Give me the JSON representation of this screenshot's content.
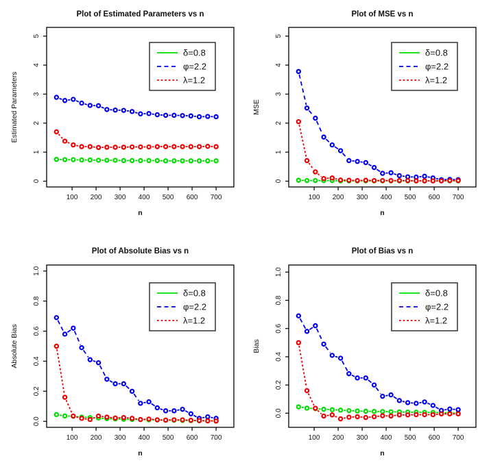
{
  "figure": {
    "background": "#ffffff"
  },
  "colors": {
    "green": "#00DE00",
    "blue": "#0000EE",
    "red": "#EE0000",
    "box": "#000000",
    "text": "#111111",
    "legend_border": "#333333"
  },
  "legend": {
    "entries": [
      {
        "label": "δ=0.8",
        "color_key": "green",
        "line_style": "solid"
      },
      {
        "label": "φ=2.2",
        "color_key": "blue",
        "line_style": "dashed"
      },
      {
        "label": "λ=1.2",
        "color_key": "red",
        "line_style": "dotted"
      }
    ],
    "position": "top-right"
  },
  "chart_data": [
    {
      "id": "estimated-parameters",
      "type": "line",
      "title": "Plot of Estimated Parameters vs n",
      "xlabel": "n",
      "ylabel": "Estimated Parameters",
      "x": [
        35,
        70,
        105,
        140,
        175,
        210,
        245,
        280,
        315,
        350,
        385,
        420,
        455,
        490,
        525,
        560,
        595,
        630,
        665,
        700
      ],
      "xlim": [
        -6,
        774
      ],
      "ylim": [
        -0.2,
        5.3
      ],
      "xticks": [
        100,
        200,
        300,
        400,
        500,
        600,
        700
      ],
      "xtick_labels": [
        "100",
        "200",
        "300",
        "400",
        "500",
        "600",
        "700"
      ],
      "yticks": [
        0,
        1,
        2,
        3,
        4,
        5
      ],
      "ytick_labels": [
        "0",
        "1",
        "2",
        "3",
        "4",
        "5"
      ],
      "grid": false,
      "legend_position": "top-right",
      "series": [
        {
          "name": "δ=0.8",
          "color_key": "green",
          "line_style": "solid",
          "values": [
            0.75,
            0.74,
            0.74,
            0.73,
            0.73,
            0.72,
            0.72,
            0.72,
            0.71,
            0.71,
            0.71,
            0.71,
            0.71,
            0.7,
            0.7,
            0.7,
            0.7,
            0.7,
            0.7,
            0.7
          ]
        },
        {
          "name": "φ=2.2",
          "color_key": "blue",
          "line_style": "dashed",
          "values": [
            2.89,
            2.78,
            2.82,
            2.69,
            2.61,
            2.6,
            2.47,
            2.45,
            2.44,
            2.4,
            2.32,
            2.33,
            2.29,
            2.27,
            2.27,
            2.26,
            2.25,
            2.22,
            2.23,
            2.22
          ]
        },
        {
          "name": "λ=1.2",
          "color_key": "red",
          "line_style": "dotted",
          "values": [
            1.7,
            1.38,
            1.25,
            1.19,
            1.19,
            1.16,
            1.17,
            1.17,
            1.17,
            1.18,
            1.18,
            1.18,
            1.19,
            1.19,
            1.19,
            1.19,
            1.19,
            1.19,
            1.2,
            1.19
          ]
        }
      ]
    },
    {
      "id": "mse",
      "type": "line",
      "title": "Plot of MSE vs n",
      "xlabel": "n",
      "ylabel": "MSE",
      "x": [
        35,
        70,
        105,
        140,
        175,
        210,
        245,
        280,
        315,
        350,
        385,
        420,
        455,
        490,
        525,
        560,
        595,
        630,
        665,
        700
      ],
      "xlim": [
        -6,
        774
      ],
      "ylim": [
        -0.2,
        5.3
      ],
      "xticks": [
        100,
        200,
        300,
        400,
        500,
        600,
        700
      ],
      "xtick_labels": [
        "100",
        "200",
        "300",
        "400",
        "500",
        "600",
        "700"
      ],
      "yticks": [
        0,
        1,
        2,
        3,
        4,
        5
      ],
      "ytick_labels": [
        "0",
        "1",
        "2",
        "3",
        "4",
        "5"
      ],
      "grid": false,
      "legend_position": "top-right",
      "series": [
        {
          "name": "δ=0.8",
          "color_key": "green",
          "line_style": "solid",
          "values": [
            0.03,
            0.02,
            0.02,
            0.02,
            0.02,
            0.01,
            0.01,
            0.01,
            0.01,
            0.01,
            0.01,
            0.01,
            0.01,
            0.01,
            0.01,
            0.01,
            0.01,
            0.01,
            0.01,
            0.01
          ]
        },
        {
          "name": "φ=2.2",
          "color_key": "blue",
          "line_style": "dashed",
          "values": [
            3.78,
            2.52,
            2.17,
            1.52,
            1.25,
            1.05,
            0.71,
            0.68,
            0.64,
            0.47,
            0.27,
            0.29,
            0.19,
            0.15,
            0.14,
            0.17,
            0.11,
            0.05,
            0.06,
            0.05
          ]
        },
        {
          "name": "λ=1.2",
          "color_key": "red",
          "line_style": "dotted",
          "values": [
            2.05,
            0.71,
            0.32,
            0.09,
            0.11,
            0.04,
            0.03,
            0.02,
            0.03,
            0.02,
            0.02,
            0.02,
            0.02,
            0.02,
            0.01,
            0.01,
            0.01,
            0.01,
            0.02,
            0.02
          ]
        }
      ]
    },
    {
      "id": "absolute-bias",
      "type": "line",
      "title": "Plot of Absolute Bias vs n",
      "xlabel": "n",
      "ylabel": "Absolute Bias",
      "x": [
        35,
        70,
        105,
        140,
        175,
        210,
        245,
        280,
        315,
        350,
        385,
        420,
        455,
        490,
        525,
        560,
        595,
        630,
        665,
        700
      ],
      "xlim": [
        -6,
        774
      ],
      "ylim": [
        -0.04,
        1.04
      ],
      "xticks": [
        100,
        200,
        300,
        400,
        500,
        600,
        700
      ],
      "xtick_labels": [
        "100",
        "200",
        "300",
        "400",
        "500",
        "600",
        "700"
      ],
      "yticks": [
        0.0,
        0.2,
        0.4,
        0.6,
        0.8,
        1.0
      ],
      "ytick_labels": [
        "0.0",
        "0.2",
        "0.4",
        "0.6",
        "0.8",
        "1.0"
      ],
      "grid": false,
      "legend_position": "top-right",
      "series": [
        {
          "name": "δ=0.8",
          "color_key": "green",
          "line_style": "solid",
          "values": [
            0.045,
            0.036,
            0.034,
            0.028,
            0.025,
            0.022,
            0.018,
            0.016,
            0.014,
            0.013,
            0.012,
            0.01,
            0.009,
            0.008,
            0.007,
            0.006,
            0.005,
            0.004,
            0.003,
            0.002
          ]
        },
        {
          "name": "φ=2.2",
          "color_key": "blue",
          "line_style": "dashed",
          "values": [
            0.69,
            0.58,
            0.62,
            0.49,
            0.41,
            0.39,
            0.28,
            0.25,
            0.25,
            0.2,
            0.12,
            0.13,
            0.09,
            0.07,
            0.07,
            0.08,
            0.05,
            0.02,
            0.03,
            0.02
          ]
        },
        {
          "name": "λ=1.2",
          "color_key": "red",
          "line_style": "dotted",
          "values": [
            0.5,
            0.16,
            0.035,
            0.02,
            0.012,
            0.035,
            0.028,
            0.022,
            0.025,
            0.02,
            0.012,
            0.015,
            0.01,
            0.008,
            0.01,
            0.01,
            0.007,
            0.005,
            0.003,
            0.002
          ]
        }
      ]
    },
    {
      "id": "bias",
      "type": "line",
      "title": "Plot of Bias vs n",
      "xlabel": "n",
      "ylabel": "Bias",
      "x": [
        35,
        70,
        105,
        140,
        175,
        210,
        245,
        280,
        315,
        350,
        385,
        420,
        455,
        490,
        525,
        560,
        595,
        630,
        665,
        700
      ],
      "xlim": [
        -6,
        774
      ],
      "ylim": [
        -0.1,
        1.05
      ],
      "xticks": [
        100,
        200,
        300,
        400,
        500,
        600,
        700
      ],
      "xtick_labels": [
        "100",
        "200",
        "300",
        "400",
        "500",
        "600",
        "700"
      ],
      "yticks": [
        0.0,
        0.2,
        0.4,
        0.6,
        0.8,
        1.0
      ],
      "ytick_labels": [
        "0.0",
        "0.2",
        "0.4",
        "0.6",
        "0.8",
        "1.0"
      ],
      "grid": false,
      "legend_position": "top-right",
      "series": [
        {
          "name": "δ=0.8",
          "color_key": "green",
          "line_style": "solid",
          "values": [
            0.045,
            0.036,
            0.032,
            0.028,
            0.025,
            0.022,
            0.018,
            0.016,
            0.014,
            0.013,
            0.012,
            0.01,
            0.009,
            0.008,
            0.007,
            0.006,
            0.005,
            0.004,
            0.002,
            0.001
          ]
        },
        {
          "name": "φ=2.2",
          "color_key": "blue",
          "line_style": "dashed",
          "values": [
            0.69,
            0.58,
            0.62,
            0.49,
            0.41,
            0.39,
            0.28,
            0.25,
            0.25,
            0.2,
            0.12,
            0.13,
            0.09,
            0.075,
            0.07,
            0.08,
            0.055,
            0.02,
            0.03,
            0.025
          ]
        },
        {
          "name": "λ=1.2",
          "color_key": "red",
          "line_style": "dotted",
          "values": [
            0.5,
            0.16,
            0.035,
            -0.02,
            -0.012,
            -0.04,
            -0.028,
            -0.025,
            -0.03,
            -0.025,
            -0.018,
            -0.02,
            -0.012,
            -0.012,
            -0.01,
            -0.01,
            -0.01,
            -0.005,
            -0.005,
            -0.005
          ]
        }
      ]
    }
  ]
}
